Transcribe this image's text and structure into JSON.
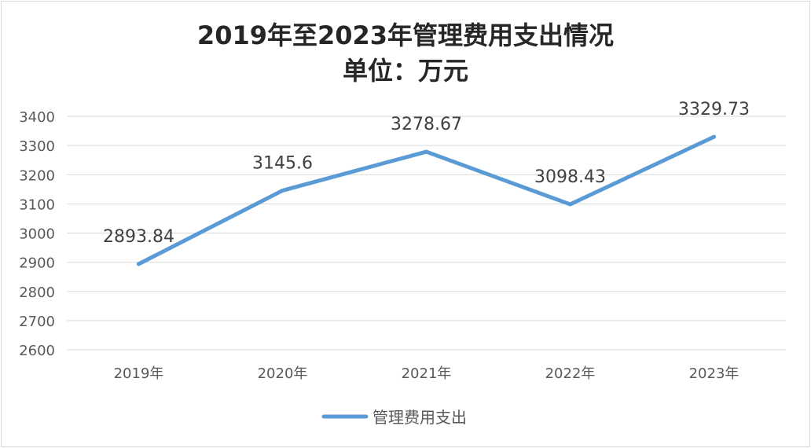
{
  "chart_data": {
    "type": "line",
    "title": "2019年至2023年管理费用支出情况",
    "subtitle": "单位：万元",
    "categories": [
      "2019年",
      "2020年",
      "2021年",
      "2022年",
      "2023年"
    ],
    "series": [
      {
        "name": "管理费用支出",
        "values": [
          2893.84,
          3145.6,
          3278.67,
          3098.43,
          3329.73
        ],
        "labels": [
          "2893.84",
          "3145.6",
          "3278.67",
          "3098.43",
          "3329.73"
        ],
        "color": "#5b9bd5"
      }
    ],
    "ylim": [
      2600,
      3400
    ],
    "yticks": [
      2600,
      2700,
      2800,
      2900,
      3000,
      3100,
      3200,
      3300,
      3400
    ],
    "xlabel": "",
    "ylabel": "",
    "grid": true,
    "legend": "bottom"
  }
}
